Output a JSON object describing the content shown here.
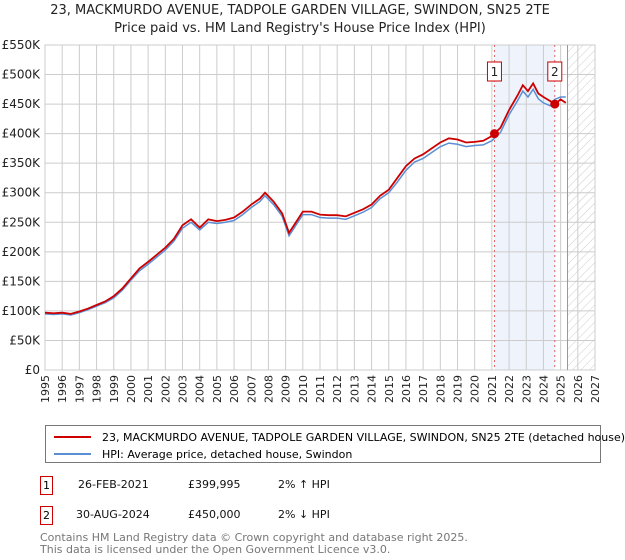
{
  "chart_data": {
    "type": "line",
    "title": "23, MACKMURDO AVENUE, TADPOLE GARDEN VILLAGE, SWINDON, SN25 2TE",
    "subtitle": "Price paid vs. HM Land Registry's House Price Index (HPI)",
    "xlim": [
      1995,
      2027
    ],
    "ylim": [
      0,
      550000
    ],
    "x_ticks": [
      "1995",
      "1996",
      "1997",
      "1998",
      "1999",
      "2000",
      "2001",
      "2002",
      "2003",
      "2004",
      "2005",
      "2006",
      "2007",
      "2008",
      "2009",
      "2010",
      "2011",
      "2012",
      "2013",
      "2014",
      "2015",
      "2016",
      "2017",
      "2018",
      "2019",
      "2020",
      "2021",
      "2022",
      "2023",
      "2024",
      "2025",
      "2026",
      "2027"
    ],
    "y_ticks": [
      "£0",
      "£50K",
      "£100K",
      "£150K",
      "£200K",
      "£250K",
      "£300K",
      "£350K",
      "£400K",
      "£450K",
      "£500K",
      "£550K"
    ],
    "y_tick_values": [
      0,
      50000,
      100000,
      150000,
      200000,
      250000,
      300000,
      350000,
      400000,
      450000,
      500000,
      550000
    ],
    "grid": true,
    "shaded_range": [
      2021.15,
      2024.66
    ],
    "forecast_from": 2025.4,
    "series": [
      {
        "name": "23, MACKMURDO AVENUE, TADPOLE GARDEN VILLAGE, SWINDON, SN25 2TE (detached house)",
        "color": "#cc0000",
        "x": [
          1995,
          1995.5,
          1996,
          1996.5,
          1997,
          1997.5,
          1998,
          1998.5,
          1999,
          1999.5,
          2000,
          2000.5,
          2001,
          2001.5,
          2002,
          2002.5,
          2003,
          2003.5,
          2004,
          2004.5,
          2005,
          2005.5,
          2006,
          2006.5,
          2007,
          2007.5,
          2007.8,
          2008.3,
          2008.8,
          2009.2,
          2009.6,
          2010,
          2010.5,
          2011,
          2011.5,
          2012,
          2012.5,
          2013,
          2013.5,
          2014,
          2014.5,
          2015,
          2015.5,
          2016,
          2016.5,
          2017,
          2017.5,
          2018,
          2018.5,
          2019,
          2019.5,
          2020,
          2020.5,
          2021,
          2021.15,
          2021.5,
          2022,
          2022.5,
          2022.8,
          2023.1,
          2023.4,
          2023.7,
          2024,
          2024.4,
          2024.66,
          2025,
          2025.3
        ],
        "y": [
          97000,
          96000,
          97000,
          95000,
          99000,
          104000,
          110000,
          116000,
          125000,
          138000,
          155000,
          172000,
          183000,
          195000,
          207000,
          222000,
          245000,
          255000,
          241000,
          255000,
          252000,
          254000,
          258000,
          268000,
          280000,
          290000,
          300000,
          285000,
          265000,
          232000,
          250000,
          268000,
          268000,
          263000,
          262000,
          262000,
          260000,
          266000,
          272000,
          280000,
          295000,
          305000,
          325000,
          345000,
          358000,
          365000,
          375000,
          385000,
          392000,
          390000,
          385000,
          386000,
          388000,
          396000,
          399995,
          410000,
          440000,
          465000,
          482000,
          472000,
          485000,
          468000,
          462000,
          455000,
          450000,
          458000,
          452000
        ]
      },
      {
        "name": "HPI: Average price, detached house, Swindon",
        "color": "#5b8fd4",
        "x": [
          1995,
          1995.5,
          1996,
          1996.5,
          1997,
          1997.5,
          1998,
          1998.5,
          1999,
          1999.5,
          2000,
          2000.5,
          2001,
          2001.5,
          2002,
          2002.5,
          2003,
          2003.5,
          2004,
          2004.5,
          2005,
          2005.5,
          2006,
          2006.5,
          2007,
          2007.5,
          2007.8,
          2008.3,
          2008.8,
          2009.2,
          2009.6,
          2010,
          2010.5,
          2011,
          2011.5,
          2012,
          2012.5,
          2013,
          2013.5,
          2014,
          2014.5,
          2015,
          2015.5,
          2016,
          2016.5,
          2017,
          2017.5,
          2018,
          2018.5,
          2019,
          2019.5,
          2020,
          2020.5,
          2021,
          2021.15,
          2021.5,
          2022,
          2022.5,
          2022.8,
          2023.1,
          2023.4,
          2023.7,
          2024,
          2024.4,
          2024.66,
          2025,
          2025.3
        ],
        "y": [
          95000,
          94000,
          95000,
          93000,
          97000,
          102000,
          108000,
          114000,
          122000,
          135000,
          152000,
          168000,
          179000,
          191000,
          203000,
          218000,
          240000,
          250000,
          237000,
          250000,
          248000,
          250000,
          253000,
          263000,
          275000,
          285000,
          295000,
          280000,
          260000,
          227000,
          245000,
          263000,
          263000,
          258000,
          257000,
          257000,
          255000,
          261000,
          267000,
          275000,
          290000,
          300000,
          318000,
          338000,
          352000,
          358000,
          368000,
          378000,
          384000,
          382000,
          378000,
          380000,
          381000,
          388000,
          392000,
          402000,
          432000,
          456000,
          472000,
          462000,
          475000,
          459000,
          452000,
          447000,
          458000,
          462000,
          462000
        ]
      }
    ],
    "sales": [
      {
        "label": "1",
        "x": 2021.15,
        "y": 399995
      },
      {
        "label": "2",
        "x": 2024.66,
        "y": 450000
      }
    ]
  },
  "legend": {
    "property": "23, MACKMURDO AVENUE, TADPOLE GARDEN VILLAGE, SWINDON, SN25 2TE (detached house)",
    "hpi": "HPI: Average price, detached house, Swindon"
  },
  "transactions": [
    {
      "num": "1",
      "date": "26-FEB-2021",
      "price": "£399,995",
      "change": "2% ↑ HPI"
    },
    {
      "num": "2",
      "date": "30-AUG-2024",
      "price": "£450,000",
      "change": "2% ↓ HPI"
    }
  ],
  "footer": {
    "line1": "Contains HM Land Registry data © Crown copyright and database right 2025.",
    "line2": "This data is licensed under the Open Government Licence v3.0."
  }
}
